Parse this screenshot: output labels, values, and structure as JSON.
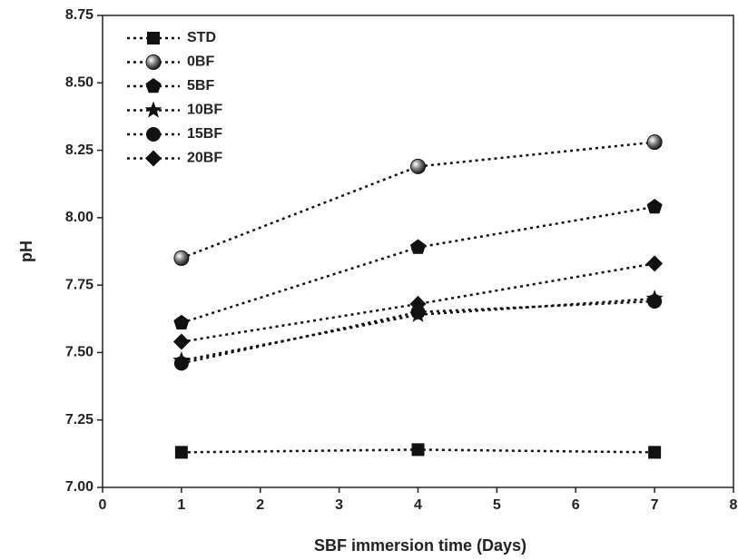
{
  "chart_data": {
    "type": "line",
    "xlabel": "SBF immersion time (Days)",
    "ylabel": "pH",
    "x": [
      1,
      4,
      7
    ],
    "series": [
      {
        "name": "STD",
        "color": "#111111",
        "marker": "square",
        "values": [
          7.13,
          7.14,
          7.13
        ]
      },
      {
        "name": "0BF",
        "color": "#111111",
        "marker": "sphere",
        "values": [
          7.85,
          8.19,
          8.28
        ]
      },
      {
        "name": "5BF",
        "color": "#111111",
        "marker": "pentagon",
        "values": [
          7.61,
          7.89,
          8.04
        ]
      },
      {
        "name": "10BF",
        "color": "#111111",
        "marker": "star",
        "values": [
          7.47,
          7.64,
          7.7
        ]
      },
      {
        "name": "15BF",
        "color": "#111111",
        "marker": "circle",
        "values": [
          7.46,
          7.65,
          7.69
        ]
      },
      {
        "name": "20BF",
        "color": "#111111",
        "marker": "diamond",
        "values": [
          7.54,
          7.68,
          7.83
        ]
      }
    ],
    "xlim": [
      0,
      8
    ],
    "xticks": [
      0,
      1,
      2,
      3,
      4,
      5,
      6,
      7,
      8
    ],
    "ylim": [
      7,
      8.75
    ],
    "yticks": [
      {
        "value": 7,
        "label": "7.00"
      },
      7.25,
      {
        "value": 7.5,
        "label": "7.50"
      },
      7.75,
      {
        "value": 8,
        "label": "8.00"
      },
      8.25,
      {
        "value": 8.5,
        "label": "8.50"
      },
      8.75
    ],
    "grid": false,
    "legend": "upper left"
  }
}
